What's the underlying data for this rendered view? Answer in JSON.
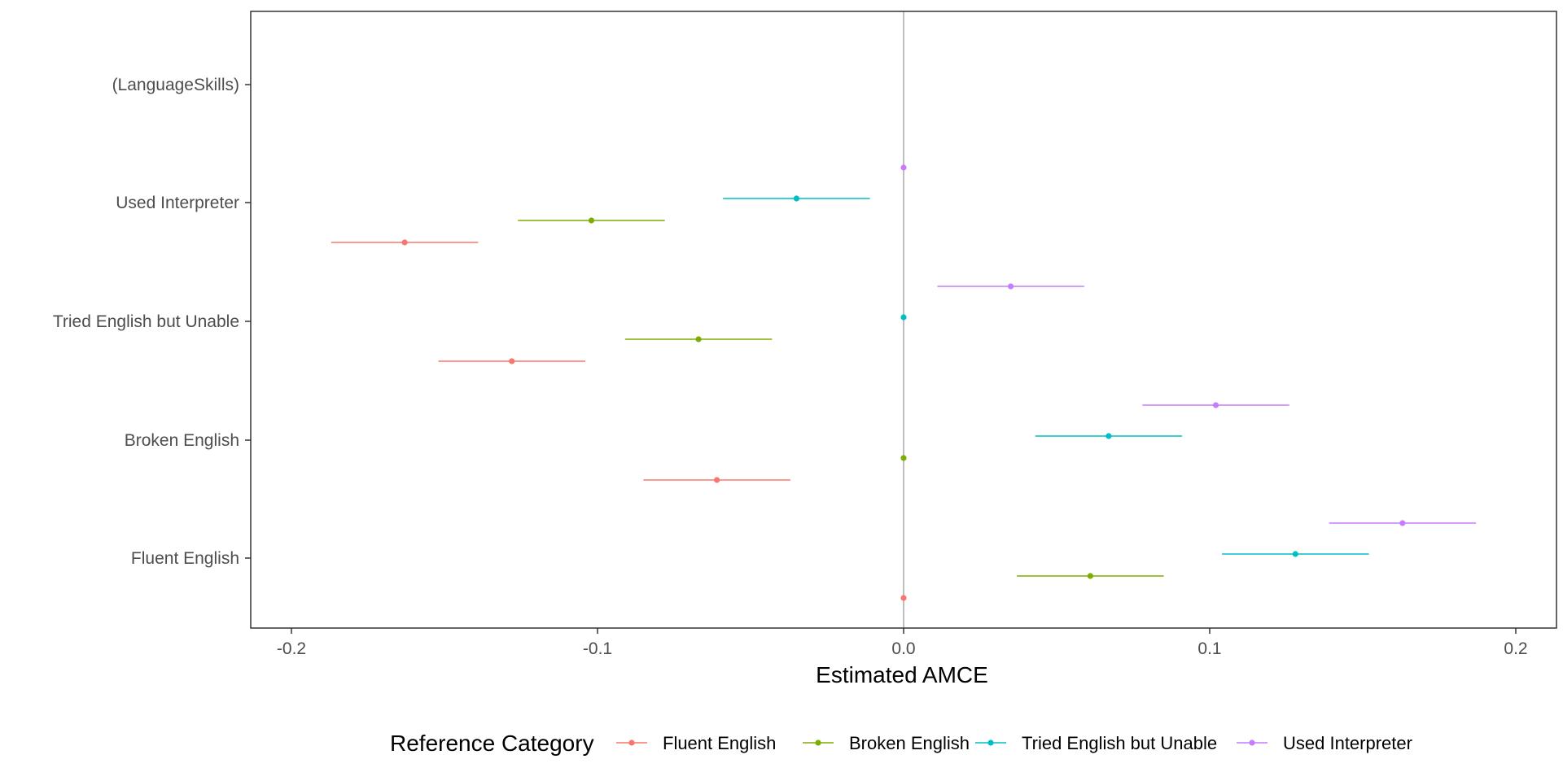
{
  "chart_data": {
    "type": "scatter",
    "xlabel": "Estimated AMCE",
    "ylabel": "",
    "xlim": [
      -0.2,
      0.2
    ],
    "x_ticks": [
      "-0.2",
      "-0.1",
      "0.0",
      "0.1",
      "0.2"
    ],
    "x_tick_values": [
      -0.2,
      -0.1,
      0.0,
      0.1,
      0.2
    ],
    "zero_reference_line": true,
    "grid": false,
    "categories": [
      "(LanguageSkills)",
      "Used Interpreter",
      "Tried English but Unable",
      "Broken English",
      "Fluent English"
    ],
    "legend_title": "Reference Category",
    "legend_position": "bottom",
    "series": [
      {
        "name": "Fluent English",
        "color": "#F8766D",
        "points": [
          {
            "category": "Used Interpreter",
            "estimate": -0.163,
            "lower": -0.187,
            "upper": -0.139
          },
          {
            "category": "Tried English but Unable",
            "estimate": -0.128,
            "lower": -0.152,
            "upper": -0.104
          },
          {
            "category": "Broken English",
            "estimate": -0.061,
            "lower": -0.085,
            "upper": -0.037
          },
          {
            "category": "Fluent English",
            "estimate": 0.0,
            "lower": 0.0,
            "upper": 0.0
          }
        ]
      },
      {
        "name": "Broken English",
        "color": "#7CAE00",
        "points": [
          {
            "category": "Used Interpreter",
            "estimate": -0.102,
            "lower": -0.126,
            "upper": -0.078
          },
          {
            "category": "Tried English but Unable",
            "estimate": -0.067,
            "lower": -0.091,
            "upper": -0.043
          },
          {
            "category": "Broken English",
            "estimate": 0.0,
            "lower": 0.0,
            "upper": 0.0
          },
          {
            "category": "Fluent English",
            "estimate": 0.061,
            "lower": 0.037,
            "upper": 0.085
          }
        ]
      },
      {
        "name": "Tried English but Unable",
        "color": "#00BFC4",
        "points": [
          {
            "category": "Used Interpreter",
            "estimate": -0.035,
            "lower": -0.059,
            "upper": -0.011
          },
          {
            "category": "Tried English but Unable",
            "estimate": 0.0,
            "lower": 0.0,
            "upper": 0.0
          },
          {
            "category": "Broken English",
            "estimate": 0.067,
            "lower": 0.043,
            "upper": 0.091
          },
          {
            "category": "Fluent English",
            "estimate": 0.128,
            "lower": 0.104,
            "upper": 0.152
          }
        ]
      },
      {
        "name": "Used Interpreter",
        "color": "#C77CFF",
        "points": [
          {
            "category": "Used Interpreter",
            "estimate": 0.0,
            "lower": 0.0,
            "upper": 0.0
          },
          {
            "category": "Tried English but Unable",
            "estimate": 0.035,
            "lower": 0.011,
            "upper": 0.059
          },
          {
            "category": "Broken English",
            "estimate": 0.102,
            "lower": 0.078,
            "upper": 0.126
          },
          {
            "category": "Fluent English",
            "estimate": 0.163,
            "lower": 0.139,
            "upper": 0.187
          }
        ]
      }
    ]
  }
}
